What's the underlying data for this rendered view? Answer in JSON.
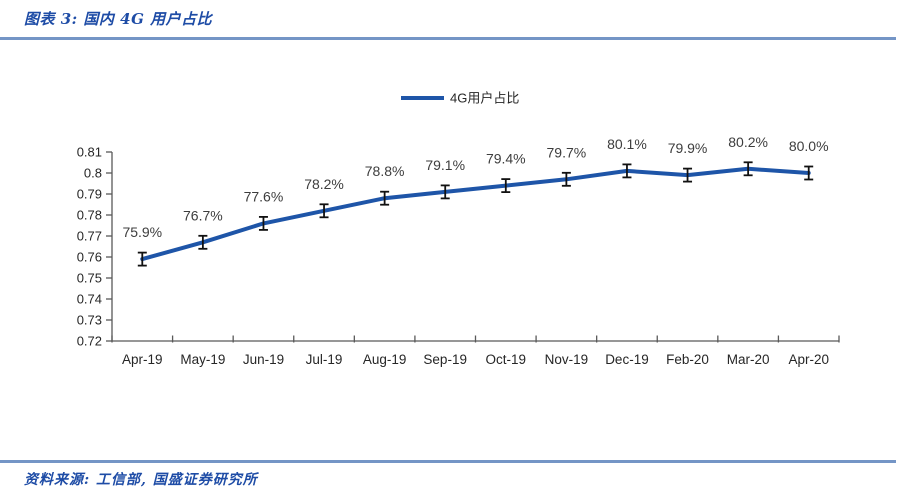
{
  "page": {
    "title": "图表 3:  国内 4G 用户占比",
    "source": "资料来源: 工信部, 国盛证券研究所"
  },
  "colors": {
    "title_blue": "#1e4ca6",
    "rule_blue": "#7495c6",
    "series_blue": "#1e55a8",
    "axis_gray": "#595959",
    "tick_label_gray": "#262626",
    "value_label_gray": "#3d3d3d",
    "error_bar_black": "#111111"
  },
  "chart_data": {
    "type": "line",
    "title": "",
    "xlabel": "",
    "ylabel": "",
    "grid": false,
    "legend": {
      "label": "4G用户占比",
      "position": "top-center"
    },
    "categories": [
      "Apr-19",
      "May-19",
      "Jun-19",
      "Jul-19",
      "Aug-19",
      "Sep-19",
      "Oct-19",
      "Nov-19",
      "Dec-19",
      "Feb-20",
      "Mar-20",
      "Apr-20"
    ],
    "values": [
      0.759,
      0.767,
      0.776,
      0.782,
      0.788,
      0.791,
      0.794,
      0.797,
      0.801,
      0.799,
      0.802,
      0.8
    ],
    "value_labels": [
      "75.9%",
      "76.7%",
      "77.6%",
      "78.2%",
      "78.8%",
      "79.1%",
      "79.4%",
      "79.7%",
      "80.1%",
      "79.9%",
      "80.2%",
      "80.0%"
    ],
    "error_bars": true,
    "ylim": [
      0.72,
      0.81
    ],
    "y_tick_step": 0.01,
    "y_tick_labels": [
      "0.81",
      "0.8",
      "0.79",
      "0.78",
      "0.77",
      "0.76",
      "0.75",
      "0.74",
      "0.73",
      "0.72"
    ]
  }
}
